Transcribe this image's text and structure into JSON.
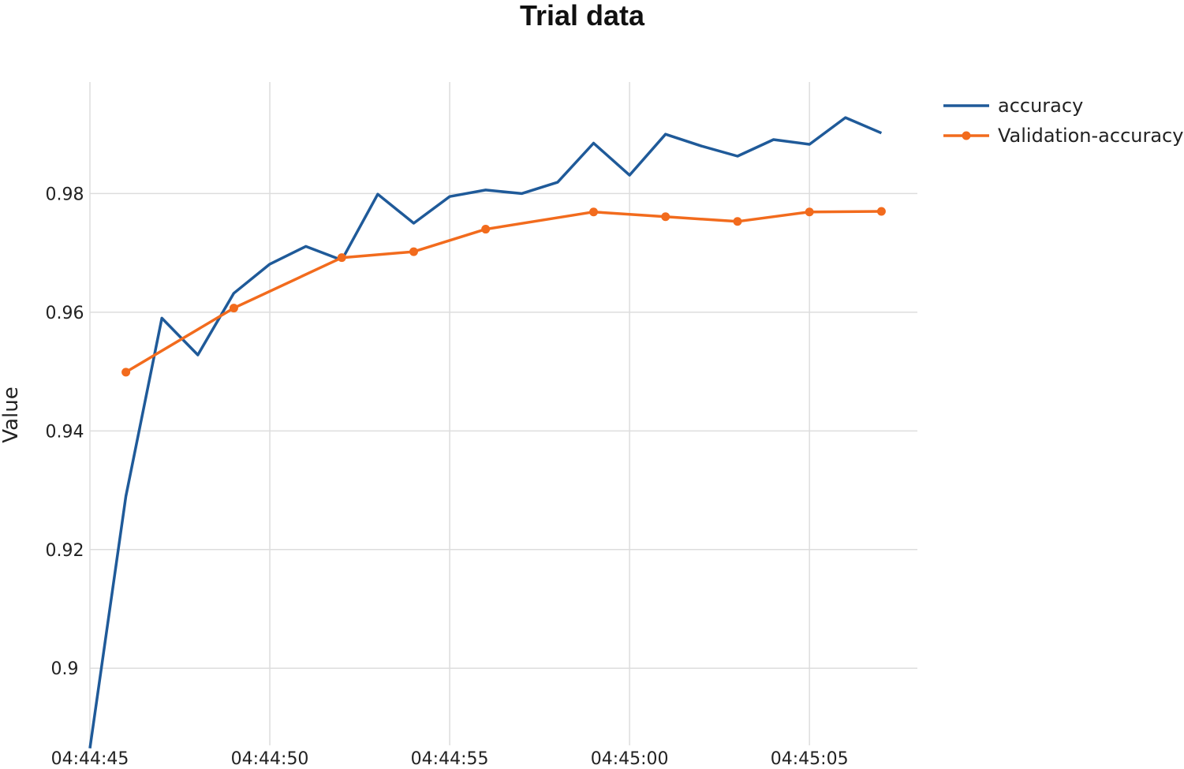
{
  "chart_data": {
    "type": "line",
    "title": "Trial data",
    "xlabel": "",
    "ylabel": "Value",
    "x_tick_labels": [
      "04:44:45",
      "04:44:50",
      "04:44:55",
      "04:45:00",
      "04:45:05"
    ],
    "y_tick_labels": [
      "0.9",
      "0.92",
      "0.94",
      "0.96",
      "0.98"
    ],
    "y_ticks": [
      0.9,
      0.92,
      0.94,
      0.96,
      0.98
    ],
    "ylim": [
      0.887,
      0.9988
    ],
    "xlim": [
      "04:44:45",
      "04:45:08"
    ],
    "grid": true,
    "legend_position": "top-right",
    "series": [
      {
        "name": "accuracy",
        "color": "#1f5a99",
        "markers": false,
        "points": [
          {
            "x": "04:44:45",
            "y": 0.8865
          },
          {
            "x": "04:44:46",
            "y": 0.929
          },
          {
            "x": "04:44:47",
            "y": 0.959
          },
          {
            "x": "04:44:48",
            "y": 0.9528
          },
          {
            "x": "04:44:49",
            "y": 0.9632
          },
          {
            "x": "04:44:50",
            "y": 0.9681
          },
          {
            "x": "04:44:51",
            "y": 0.9711
          },
          {
            "x": "04:44:52",
            "y": 0.9688
          },
          {
            "x": "04:44:53",
            "y": 0.9799
          },
          {
            "x": "04:44:54",
            "y": 0.975
          },
          {
            "x": "04:44:55",
            "y": 0.9795
          },
          {
            "x": "04:44:56",
            "y": 0.9806
          },
          {
            "x": "04:44:57",
            "y": 0.98
          },
          {
            "x": "04:44:58",
            "y": 0.9819
          },
          {
            "x": "04:44:59",
            "y": 0.9885
          },
          {
            "x": "04:45:00",
            "y": 0.9831
          },
          {
            "x": "04:45:01",
            "y": 0.99
          },
          {
            "x": "04:45:02",
            "y": 0.988
          },
          {
            "x": "04:45:03",
            "y": 0.9863
          },
          {
            "x": "04:45:04",
            "y": 0.9891
          },
          {
            "x": "04:45:05",
            "y": 0.9883
          },
          {
            "x": "04:45:06",
            "y": 0.9928
          },
          {
            "x": "04:45:07",
            "y": 0.9902
          }
        ]
      },
      {
        "name": "Validation-accuracy",
        "color": "#f26b1d",
        "markers": true,
        "points": [
          {
            "x": "04:44:46",
            "y": 0.9499
          },
          {
            "x": "04:44:49",
            "y": 0.9607
          },
          {
            "x": "04:44:52",
            "y": 0.9692
          },
          {
            "x": "04:44:54",
            "y": 0.9702
          },
          {
            "x": "04:44:56",
            "y": 0.974
          },
          {
            "x": "04:44:59",
            "y": 0.9769
          },
          {
            "x": "04:45:01",
            "y": 0.9761
          },
          {
            "x": "04:45:03",
            "y": 0.9753
          },
          {
            "x": "04:45:05",
            "y": 0.9769
          },
          {
            "x": "04:45:07",
            "y": 0.977
          }
        ]
      }
    ]
  }
}
